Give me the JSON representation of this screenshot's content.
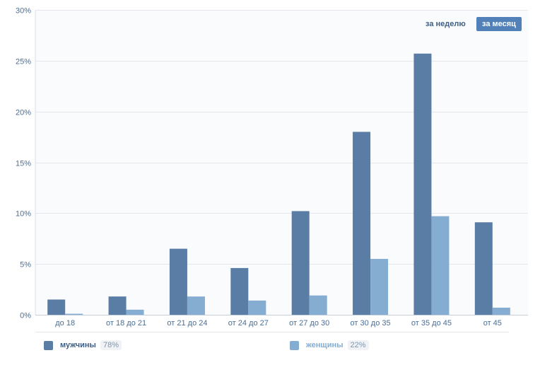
{
  "controls": {
    "week_label": "за неделю",
    "month_label": "за месяц"
  },
  "legend": [
    {
      "label": "мужчины",
      "percent": "78%",
      "color": "#5a7da6"
    },
    {
      "label": "женщины",
      "percent": "22%",
      "color": "#85acd1"
    }
  ],
  "chart_data": {
    "type": "bar",
    "title": "",
    "xlabel": "",
    "ylabel": "",
    "ylim": [
      0,
      30
    ],
    "yticks": [
      "0%",
      "5%",
      "10%",
      "15%",
      "20%",
      "25%",
      "30%"
    ],
    "grid": true,
    "categories": [
      "до 18",
      "от 18 до 21",
      "от 21 до 24",
      "от 24 до 27",
      "от 27 до 30",
      "от 30 до 35",
      "от 35 до 45",
      "от 45"
    ],
    "series": [
      {
        "name": "мужчины",
        "color": "#5a7da6",
        "values": [
          1.5,
          1.8,
          6.5,
          4.6,
          10.2,
          18.0,
          25.7,
          9.1
        ]
      },
      {
        "name": "женщины",
        "color": "#85acd1",
        "values": [
          0.1,
          0.5,
          1.8,
          1.4,
          1.9,
          5.5,
          9.7,
          0.7
        ]
      }
    ]
  }
}
